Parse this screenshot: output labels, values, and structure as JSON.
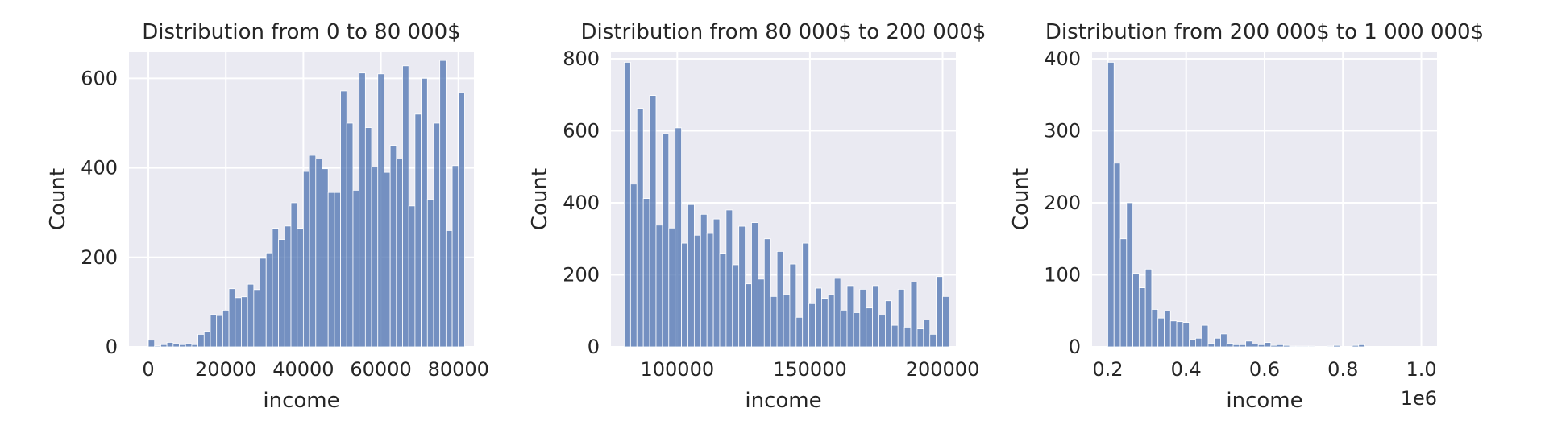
{
  "chart_data": [
    {
      "type": "bar",
      "title": "Distribution from 0 to 80 000$",
      "xlabel": "income",
      "ylabel": "Count",
      "xlim": [
        -5000,
        84000
      ],
      "ylim": [
        0,
        660
      ],
      "xticks": [
        0,
        20000,
        40000,
        60000,
        80000
      ],
      "xtick_labels": [
        "0",
        "20000",
        "40000",
        "60000",
        "80000"
      ],
      "yticks": [
        0,
        200,
        400,
        600
      ],
      "ytick_labels": [
        "0",
        "200",
        "400",
        "600"
      ],
      "grid": true,
      "bin_start": 0,
      "bin_width": 1600,
      "values": [
        15,
        2,
        5,
        10,
        7,
        5,
        7,
        5,
        28,
        35,
        72,
        70,
        82,
        130,
        110,
        112,
        140,
        128,
        198,
        210,
        265,
        240,
        270,
        322,
        265,
        392,
        428,
        420,
        398,
        345,
        345,
        572,
        500,
        350,
        612,
        490,
        402,
        610,
        390,
        450,
        420,
        628,
        315,
        520,
        600,
        330,
        500,
        640,
        260,
        405,
        568
      ]
    },
    {
      "type": "bar",
      "title": "Distribution from 80 000$ to 200 000$",
      "xlabel": "income",
      "ylabel": "Count",
      "xlim": [
        75000,
        205000
      ],
      "ylim": [
        0,
        820
      ],
      "xticks": [
        100000,
        150000,
        200000
      ],
      "xtick_labels": [
        "100000",
        "150000",
        "200000"
      ],
      "yticks": [
        0,
        200,
        400,
        600,
        800
      ],
      "ytick_labels": [
        "0",
        "200",
        "400",
        "600",
        "800"
      ],
      "grid": true,
      "bin_start": 80000,
      "bin_width": 2400,
      "values": [
        790,
        452,
        662,
        412,
        698,
        338,
        592,
        330,
        608,
        288,
        395,
        310,
        368,
        315,
        355,
        260,
        380,
        228,
        335,
        175,
        345,
        188,
        300,
        140,
        265,
        145,
        230,
        82,
        288,
        120,
        163,
        135,
        145,
        190,
        102,
        170,
        95,
        160,
        108,
        170,
        88,
        128,
        60,
        160,
        55,
        180,
        50,
        75,
        35,
        195,
        140
      ]
    },
    {
      "type": "bar",
      "title": "Distribution from 200 000$ to 1 000 000$",
      "xlabel": "income",
      "ylabel": "Count",
      "axis_offset_label": "1e6",
      "xlim": [
        160000,
        1040000
      ],
      "ylim": [
        0,
        410
      ],
      "xticks": [
        200000,
        400000,
        600000,
        800000,
        1000000
      ],
      "xtick_labels": [
        "0.2",
        "0.4",
        "0.6",
        "0.8",
        "1.0"
      ],
      "yticks": [
        0,
        100,
        200,
        300,
        400
      ],
      "ytick_labels": [
        "0",
        "100",
        "200",
        "300",
        "400"
      ],
      "grid": true,
      "bin_start": 200000,
      "bin_width": 16000,
      "values": [
        395,
        255,
        150,
        200,
        102,
        82,
        108,
        52,
        40,
        50,
        36,
        35,
        34,
        10,
        12,
        30,
        5,
        12,
        18,
        5,
        3,
        3,
        8,
        4,
        3,
        6,
        2,
        3,
        2,
        1,
        1,
        1,
        1,
        0,
        0,
        1,
        2,
        0,
        0,
        2,
        3,
        0,
        0,
        0,
        0,
        0,
        0,
        0,
        0,
        0
      ]
    }
  ]
}
